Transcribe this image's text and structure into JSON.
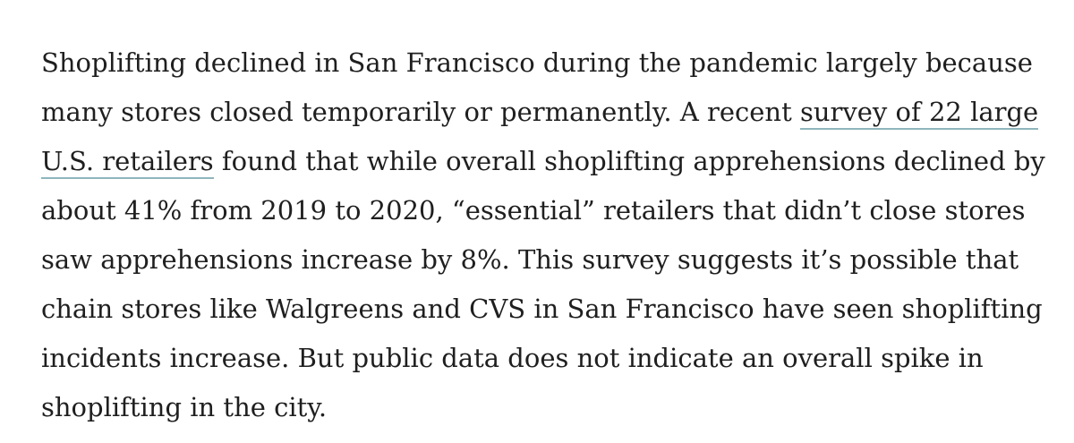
{
  "article": {
    "lines": [
      "Shoplifting declined in San Francisco during the pandemic largely because",
      "many stores closed temporarily or permanently. A recent ",
      "found that while overall shoplifting apprehensions declined by",
      "about 41% from 2019 to 2020, “essential” retailers that didn’t close stores",
      "saw apprehensions increase by 8%. This survey suggests it’s possible that",
      "chain stores like Walgreens and CVS in San Francisco have seen shoplifting",
      "incidents increase. But public data does not indicate an overall spike in",
      "shoplifting in the city."
    ],
    "link": {
      "part1": "survey of 22 large",
      "part2": "U.S. retailers"
    },
    "link_underline_color": "#8fb5bd",
    "text_color": "#1f1f1f"
  }
}
